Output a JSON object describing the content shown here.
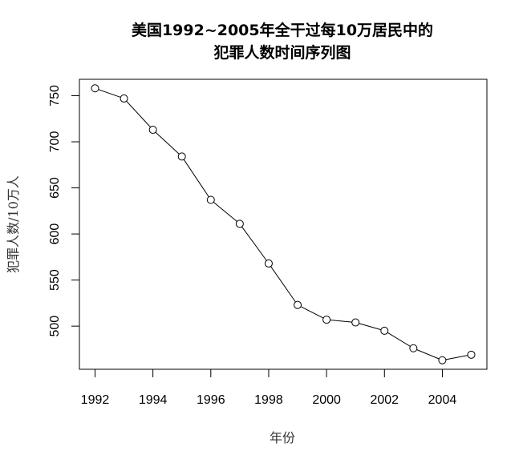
{
  "chart_data": {
    "type": "line",
    "title_lines": [
      "美国1992~2005年全干过每10万居民中的",
      "犯罪人数时间序列图"
    ],
    "xlabel": "年份",
    "ylabel": "犯罪人数/10万人",
    "x": [
      1992,
      1993,
      1994,
      1995,
      1996,
      1997,
      1998,
      1999,
      2000,
      2001,
      2002,
      2003,
      2004,
      2005
    ],
    "y": [
      758,
      747,
      713,
      684,
      637,
      611,
      568,
      523,
      507,
      504,
      495,
      476,
      463,
      469
    ],
    "x_ticks": [
      1992,
      1994,
      1996,
      1998,
      2000,
      2002,
      2004
    ],
    "y_ticks": [
      500,
      550,
      600,
      650,
      700,
      750
    ],
    "xlim": [
      1991.46,
      2005.54
    ],
    "ylim": [
      453.2,
      767.8
    ],
    "marker": "open-circle",
    "line_color": "#000000",
    "grid": false,
    "legend": "none"
  }
}
